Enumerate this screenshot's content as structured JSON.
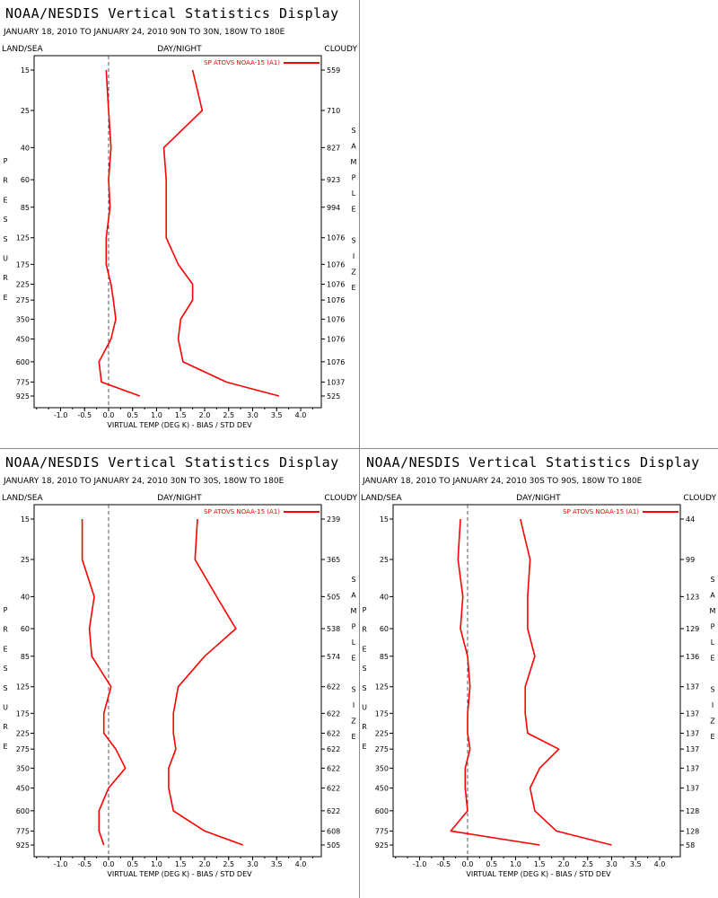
{
  "chart_data": [
    {
      "type": "line",
      "title": "NOAA/NESDIS Vertical Statistics Display",
      "subtitle": "JANUARY 18, 2010 TO JANUARY 24, 2010   90N TO 30N, 180W TO 180E",
      "header_left": "LAND/SEA",
      "header_center": "DAY/NIGHT",
      "header_right": "CLOUDY",
      "xlabel": "VIRTUAL TEMP (DEG K) - BIAS / STD DEV",
      "ylabel_left": "PRESSURE",
      "ylabel_right": "SAMPLE SIZE",
      "xlim": [
        -1.5,
        4.5
      ],
      "x_ticks": [
        -1.0,
        -0.5,
        0.0,
        0.5,
        1.0,
        1.5,
        2.0,
        2.5,
        3.0,
        3.5,
        4.0
      ],
      "y_scale": "log",
      "pressure_levels": [
        15,
        25,
        40,
        60,
        85,
        125,
        175,
        225,
        275,
        350,
        450,
        600,
        775,
        925
      ],
      "sample_size": [
        559,
        710,
        827,
        923,
        994,
        1076,
        1076,
        1076,
        1076,
        1076,
        1076,
        1076,
        1037,
        525
      ],
      "legend": "SP ATOVS NOAA-15 (A1)",
      "color": "#ff0000",
      "bias": [
        -0.05,
        0.0,
        0.05,
        0.0,
        0.03,
        -0.05,
        -0.05,
        0.05,
        0.1,
        0.15,
        0.05,
        -0.2,
        -0.15,
        0.65
      ],
      "std_dev": [
        1.75,
        1.95,
        1.15,
        1.2,
        1.2,
        1.2,
        1.45,
        1.75,
        1.75,
        1.5,
        1.45,
        1.55,
        2.45,
        3.55
      ]
    },
    {
      "type": "line",
      "title": "NOAA/NESDIS Vertical Statistics Display",
      "subtitle": "JANUARY 18, 2010 TO JANUARY 24, 2010   30N TO 30S, 180W TO 180E",
      "header_left": "LAND/SEA",
      "header_center": "DAY/NIGHT",
      "header_right": "CLOUDY",
      "xlabel": "VIRTUAL TEMP (DEG K) - BIAS / STD DEV",
      "ylabel_left": "PRESSURE",
      "ylabel_right": "SAMPLE SIZE",
      "xlim": [
        -1.5,
        4.5
      ],
      "x_ticks": [
        -1.0,
        -0.5,
        0.0,
        0.5,
        1.0,
        1.5,
        2.0,
        2.5,
        3.0,
        3.5,
        4.0
      ],
      "y_scale": "log",
      "pressure_levels": [
        15,
        25,
        40,
        60,
        85,
        125,
        175,
        225,
        275,
        350,
        450,
        600,
        775,
        925
      ],
      "sample_size": [
        239,
        365,
        505,
        538,
        574,
        622,
        622,
        622,
        622,
        622,
        622,
        622,
        608,
        505
      ],
      "legend": "SP ATOVS NOAA-15 (A1)",
      "color": "#ff0000",
      "bias": [
        -0.55,
        -0.55,
        -0.3,
        -0.4,
        -0.35,
        0.05,
        -0.1,
        -0.1,
        0.15,
        0.35,
        0.0,
        -0.2,
        -0.2,
        -0.1
      ],
      "std_dev": [
        1.85,
        1.8,
        2.25,
        2.65,
        2.0,
        1.45,
        1.35,
        1.35,
        1.4,
        1.25,
        1.25,
        1.35,
        2.0,
        2.8
      ]
    },
    {
      "type": "line",
      "title": "NOAA/NESDIS Vertical Statistics Display",
      "subtitle": "JANUARY 18, 2010 TO JANUARY 24, 2010   30S TO 90S, 180W TO 180E",
      "header_left": "LAND/SEA",
      "header_center": "DAY/NIGHT",
      "header_right": "CLOUDY",
      "xlabel": "VIRTUAL TEMP (DEG K) - BIAS / STD DEV",
      "ylabel_left": "PRESSURE",
      "ylabel_right": "SAMPLE SIZE",
      "xlim": [
        -1.5,
        4.5
      ],
      "x_ticks": [
        -1.0,
        -0.5,
        0.0,
        0.5,
        1.0,
        1.5,
        2.0,
        2.5,
        3.0,
        3.5,
        4.0
      ],
      "y_scale": "log",
      "pressure_levels": [
        15,
        25,
        40,
        60,
        85,
        125,
        175,
        225,
        275,
        350,
        450,
        600,
        775,
        925
      ],
      "sample_size": [
        44,
        99,
        123,
        129,
        136,
        137,
        137,
        137,
        137,
        137,
        137,
        128,
        128,
        58
      ],
      "legend": "SP ATOVS NOAA-15 (A1)",
      "color": "#ff0000",
      "bias": [
        -0.15,
        -0.2,
        -0.1,
        -0.15,
        0.0,
        0.05,
        0.0,
        0.0,
        0.05,
        -0.05,
        -0.05,
        0.0,
        -0.35,
        1.5
      ],
      "std_dev": [
        1.1,
        1.3,
        1.25,
        1.25,
        1.4,
        1.2,
        1.2,
        1.25,
        1.9,
        1.5,
        1.3,
        1.4,
        1.85,
        3.0
      ]
    }
  ]
}
